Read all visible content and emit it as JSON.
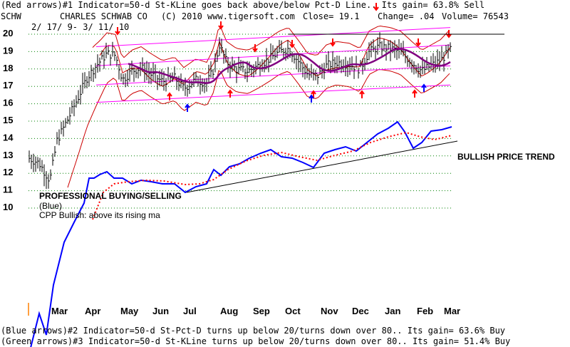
{
  "header": {
    "line1": "(Red arrows)#1 Indicator=50-d St-KLine goes back above/below Pct-D Line.. Its gain= 63.8% Sell",
    "symbol": "SCHW",
    "company": "CHARLES SCHWAB CO",
    "copyright": "(C) 2010 www.tigersoft.com",
    "close": "Close=  19.1",
    "change": "Change= .04",
    "volume": "Volume=  76543",
    "date_range": "2/ 17/ 9- 3/ 11/ 10"
  },
  "footer": {
    "blue": "(Blue arrows)#2 Indicator=50-d St-Pct-D turns up below 20/turns down over 80.. Its gain= 63.6% Buy",
    "green": "(Green arrows)#3 Indicator=50-d St-KLine turns up below 20/turns down over 80.. Its gain= 51.4% Buy"
  },
  "annotations": {
    "trend": "BULLISH PRICE TREND",
    "pro1": "PROFESSIONAL BUYING/SELLING",
    "pro2": "(Blue)",
    "pro3": "CPP Bullish: above its rising ma"
  },
  "colors": {
    "price_bars": "#000000",
    "ma": "#800080",
    "bands": "#cc0000",
    "channel": "#ff00ff",
    "sell_arrow": "#ff0000",
    "buy_arrow": "#0000ff",
    "cpp_line": "#0000ff",
    "cpp_ma": "#ff0000",
    "grid": "#008000"
  },
  "chart_data": {
    "type": "line",
    "y_ticks": [
      10,
      11,
      12,
      13,
      14,
      15,
      16,
      17,
      18,
      19,
      20
    ],
    "ylim": [
      9.5,
      20.3
    ],
    "x_labels": [
      "Mar",
      "Apr",
      "May",
      "Jun",
      "Jul",
      "Aug",
      "Sep",
      "Oct",
      "Nov",
      "Dec",
      "Jan",
      "Feb",
      "Mar"
    ],
    "price_close": [
      [
        "Feb",
        12.7
      ],
      [
        "Mar",
        11.6
      ],
      [
        "Apr",
        17.6
      ],
      [
        "Apr",
        18.8
      ],
      [
        "May",
        17.3
      ],
      [
        "May",
        18.0
      ],
      [
        "Jun",
        16.7
      ],
      [
        "Jun",
        17.4
      ],
      [
        "Jul",
        17.0
      ],
      [
        "Aug",
        19.3
      ],
      [
        "Aug",
        17.9
      ],
      [
        "Sep",
        18.0
      ],
      [
        "Sep",
        18.7
      ],
      [
        "Oct",
        19.1
      ],
      [
        "Oct",
        17.5
      ],
      [
        "Nov",
        18.1
      ],
      [
        "Nov",
        18.2
      ],
      [
        "Dec",
        18.4
      ],
      [
        "Dec",
        19.2
      ],
      [
        "Jan",
        19.1
      ],
      [
        "Jan",
        18.0
      ],
      [
        "Feb",
        17.9
      ],
      [
        "Feb",
        18.4
      ],
      [
        "Mar",
        19.0
      ]
    ],
    "series": [
      {
        "name": "PROFESSIONAL BUYING/SELLING"
      }
    ]
  }
}
